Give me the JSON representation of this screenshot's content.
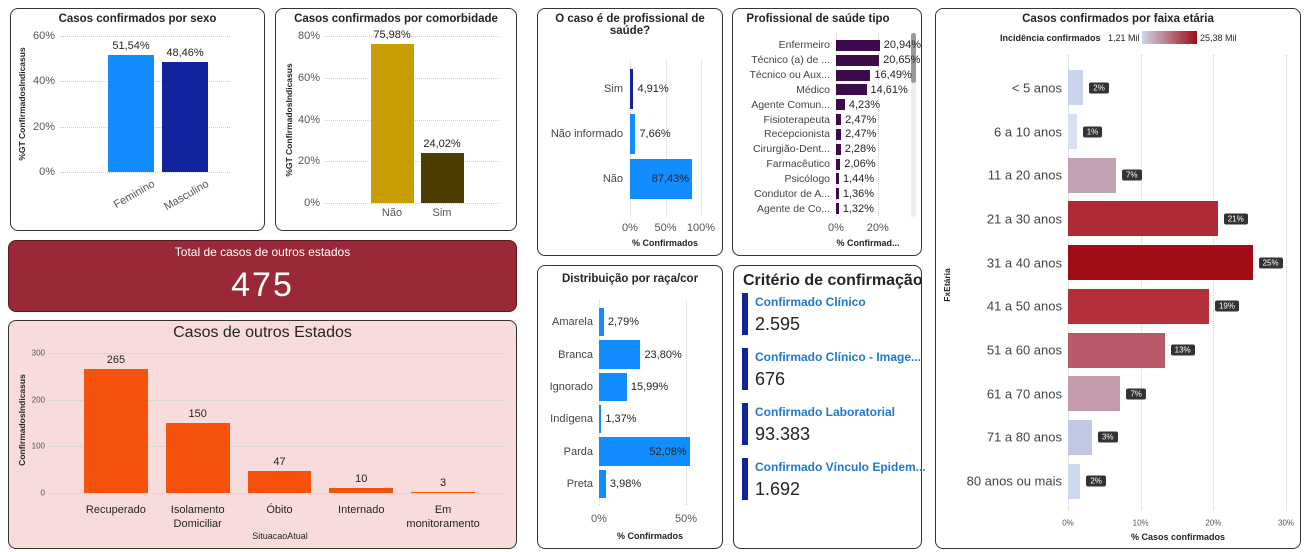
{
  "chart_data": [
    {
      "type": "bar",
      "title": "Casos confirmados por sexo",
      "y_label": "%GT ConfirmadosIndicasus",
      "categories": [
        "Feminino",
        "Masculino"
      ],
      "values": [
        51.54,
        48.46
      ],
      "value_labels": [
        "51,54%",
        "48,46%"
      ],
      "colors": [
        "#118dff",
        "#12239e"
      ],
      "ylim": [
        0,
        60
      ],
      "yticks": [
        {
          "value": 0,
          "label": "0%"
        },
        {
          "value": 20,
          "label": "20%"
        },
        {
          "value": 40,
          "label": "40%"
        },
        {
          "value": 60,
          "label": "60%"
        }
      ],
      "grid": true
    },
    {
      "type": "bar",
      "title": "Casos confirmados por comorbidade",
      "y_label": "%GT ConfirmadosIndicasus",
      "categories": [
        "Não",
        "Sim"
      ],
      "values": [
        75.98,
        24.02
      ],
      "value_labels": [
        "75,98%",
        "24,02%"
      ],
      "colors": [
        "#c99c00",
        "#4e3d00"
      ],
      "ylim": [
        0,
        80
      ],
      "yticks": [
        {
          "value": 0,
          "label": "0%"
        },
        {
          "value": 20,
          "label": "20%"
        },
        {
          "value": 40,
          "label": "40%"
        },
        {
          "value": 60,
          "label": "60%"
        },
        {
          "value": 80,
          "label": "80%"
        }
      ],
      "grid": true
    },
    {
      "type": "bar",
      "title": "Casos de outros Estados",
      "x_label": "SituacaoAtual",
      "y_label": "ConfirmadosIndicasus",
      "categories": [
        "Recuperado",
        "Isolamento Domiciliar",
        "Óbito",
        "Internado",
        "Em monitoramento"
      ],
      "values": [
        265,
        150,
        47,
        10,
        3
      ],
      "color": "#f4520d",
      "ylim": [
        0,
        300
      ],
      "yticks": [
        0,
        100,
        200,
        300
      ],
      "grid": true
    },
    {
      "type": "hbar",
      "title": "O caso é de profissional de saúde?",
      "x_label": "% Confirmados",
      "categories": [
        "Sim",
        "Não informado",
        "Não"
      ],
      "values": [
        4.91,
        7.66,
        87.43
      ],
      "value_labels": [
        "4,91%",
        "7,66%",
        "87,43%"
      ],
      "colors": [
        "#12239e",
        "#118dff",
        "#118dff"
      ],
      "xlim": [
        0,
        100
      ],
      "xticks": [
        {
          "value": 0,
          "label": "0%"
        },
        {
          "value": 50,
          "label": "50%"
        },
        {
          "value": 100,
          "label": "100%"
        }
      ],
      "grid": true
    },
    {
      "type": "hbar",
      "title": "Profissional de saúde tipo",
      "x_label": "% Confirmad...",
      "categories": [
        "Enfermeiro",
        "Técnico (a) de ...",
        "Técnico ou Aux...",
        "Médico",
        "Agente Comun...",
        "Fisioterapeuta",
        "Recepcionista",
        "Cirurgião-Dent...",
        "Farmacêutico",
        "Psicólogo",
        "Condutor de A...",
        "Agente de Co..."
      ],
      "values": [
        20.94,
        20.65,
        16.49,
        14.61,
        4.23,
        2.47,
        2.47,
        2.28,
        2.06,
        1.44,
        1.36,
        1.32
      ],
      "value_labels": [
        "20,94%",
        "20,65%",
        "16,49%",
        "14,61%",
        "4,23%",
        "2,47%",
        "2,47%",
        "2,28%",
        "2,06%",
        "1,44%",
        "1,36%",
        "1,32%"
      ],
      "color": "#3d0a4b",
      "xlim": [
        0,
        34
      ],
      "xticks": [
        {
          "value": 0,
          "label": "0%"
        },
        {
          "value": 20,
          "label": "20%"
        }
      ],
      "grid": true
    },
    {
      "type": "hbar",
      "title": "Distribuição por raça/cor",
      "x_label": "% Confirmados",
      "categories": [
        "Amarela",
        "Branca",
        "Ignorado",
        "Indígena",
        "Parda",
        "Preta"
      ],
      "values": [
        2.79,
        23.8,
        15.99,
        1.37,
        52.08,
        3.98
      ],
      "value_labels": [
        "2,79%",
        "23,80%",
        "15,99%",
        "1,37%",
        "52,08%",
        "3,98%"
      ],
      "color": "#118dff",
      "xlim": [
        0,
        58
      ],
      "xticks": [
        {
          "value": 0,
          "label": "0%"
        },
        {
          "value": 50,
          "label": "50%"
        }
      ],
      "grid": true
    },
    {
      "type": "hbar",
      "title": "Casos confirmados por faixa etária",
      "x_label": "% Casos confirmados",
      "y_label": "FxEtária",
      "legend": {
        "title": "Incidência confirmados",
        "min_label": "1,21 Mil",
        "max_label": "25,38 Mil",
        "colors": [
          "#cdd6ee",
          "#a00d14"
        ]
      },
      "categories": [
        "< 5 anos",
        "6 a 10 anos",
        "11 a 20 anos",
        "21 a 30 anos",
        "31 a 40 anos",
        "41 a 50 anos",
        "51 a 60 anos",
        "61 a 70 anos",
        "71 a 80 anos",
        "80 anos ou mais"
      ],
      "values": [
        2.1,
        1.2,
        6.6,
        20.6,
        25.4,
        19.4,
        13.3,
        7.2,
        3.3,
        1.7
      ],
      "value_labels": [
        "2%",
        "1%",
        "7%",
        "21%",
        "25%",
        "19%",
        "13%",
        "7%",
        "3%",
        "2%"
      ],
      "colors": [
        "#c9d3ea",
        "#d7e1f2",
        "#c4a2b6",
        "#b02a35",
        "#a00d14",
        "#b3303b",
        "#b85a68",
        "#c49aad",
        "#c0c8e2",
        "#ccd8ef"
      ],
      "xlim": [
        0,
        30
      ],
      "xticks": [
        {
          "value": 0,
          "label": "0%"
        },
        {
          "value": 10,
          "label": "10%"
        },
        {
          "value": 20,
          "label": "20%"
        },
        {
          "value": 30,
          "label": "30%"
        }
      ],
      "grid": true
    }
  ],
  "total_card": {
    "title": "Total de casos de outros estados",
    "value": 475
  },
  "criteria": {
    "title": "Critério de confirmação",
    "items": [
      {
        "label": "Confirmado Clínico",
        "value": "2.595"
      },
      {
        "label": "Confirmado Clínico - Image...",
        "value": "676"
      },
      {
        "label": "Confirmado Laboratorial",
        "value": "93.383"
      },
      {
        "label": "Confirmado Vínculo Epidem...",
        "value": "1.692"
      }
    ]
  }
}
